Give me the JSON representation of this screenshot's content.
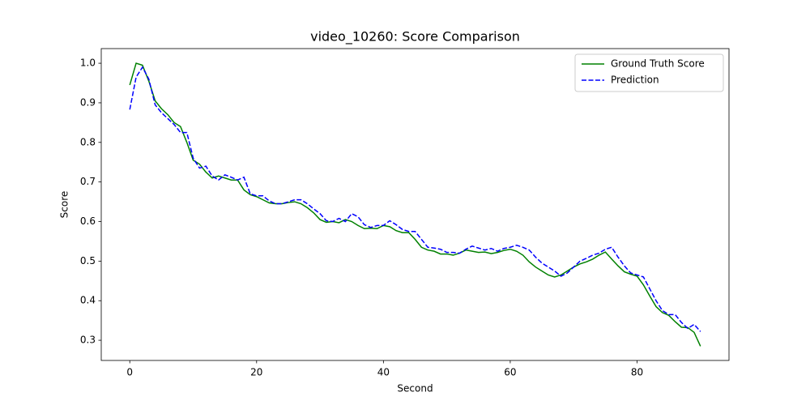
{
  "chart_data": {
    "type": "line",
    "title": "video_10260: Score Comparison",
    "x_label": "Second",
    "y_label": "Score",
    "x": [
      0,
      1,
      2,
      3,
      4,
      5,
      6,
      7,
      8,
      9,
      10,
      11,
      12,
      13,
      14,
      15,
      16,
      17,
      18,
      19,
      20,
      21,
      22,
      23,
      24,
      25,
      26,
      27,
      28,
      29,
      30,
      31,
      32,
      33,
      34,
      35,
      36,
      37,
      38,
      39,
      40,
      41,
      42,
      43,
      44,
      45,
      46,
      47,
      48,
      49,
      50,
      51,
      52,
      53,
      54,
      55,
      56,
      57,
      58,
      59,
      60,
      61,
      62,
      63,
      64,
      65,
      66,
      67,
      68,
      69,
      70,
      71,
      72,
      73,
      74,
      75,
      76,
      77,
      78,
      79,
      80,
      81,
      82,
      83,
      84,
      85,
      86,
      87,
      88,
      89,
      90
    ],
    "series": [
      {
        "name": "Ground Truth Score",
        "color": "#008000",
        "linestyle": "solid",
        "values": [
          0.945,
          1.0,
          0.995,
          0.955,
          0.905,
          0.885,
          0.87,
          0.85,
          0.84,
          0.8,
          0.755,
          0.745,
          0.725,
          0.71,
          0.715,
          0.71,
          0.705,
          0.705,
          0.68,
          0.668,
          0.663,
          0.655,
          0.647,
          0.645,
          0.645,
          0.648,
          0.65,
          0.645,
          0.635,
          0.622,
          0.605,
          0.598,
          0.6,
          0.597,
          0.605,
          0.6,
          0.59,
          0.582,
          0.583,
          0.582,
          0.59,
          0.587,
          0.577,
          0.572,
          0.572,
          0.555,
          0.535,
          0.528,
          0.525,
          0.518,
          0.518,
          0.515,
          0.52,
          0.528,
          0.525,
          0.522,
          0.523,
          0.519,
          0.522,
          0.527,
          0.53,
          0.525,
          0.515,
          0.498,
          0.485,
          0.475,
          0.465,
          0.46,
          0.465,
          0.475,
          0.485,
          0.493,
          0.498,
          0.505,
          0.515,
          0.523,
          0.505,
          0.488,
          0.473,
          0.467,
          0.462,
          0.44,
          0.412,
          0.385,
          0.37,
          0.363,
          0.347,
          0.333,
          0.332,
          0.32,
          0.285
        ]
      },
      {
        "name": "Prediction",
        "color": "#0000ff",
        "linestyle": "dashed",
        "values": [
          0.883,
          0.965,
          0.99,
          0.96,
          0.895,
          0.875,
          0.86,
          0.845,
          0.825,
          0.825,
          0.76,
          0.735,
          0.74,
          0.715,
          0.705,
          0.718,
          0.712,
          0.705,
          0.712,
          0.67,
          0.665,
          0.665,
          0.652,
          0.645,
          0.645,
          0.65,
          0.655,
          0.655,
          0.645,
          0.632,
          0.62,
          0.602,
          0.6,
          0.608,
          0.6,
          0.62,
          0.612,
          0.592,
          0.585,
          0.59,
          0.59,
          0.602,
          0.592,
          0.58,
          0.575,
          0.575,
          0.555,
          0.535,
          0.533,
          0.53,
          0.522,
          0.522,
          0.52,
          0.53,
          0.538,
          0.533,
          0.528,
          0.532,
          0.525,
          0.532,
          0.535,
          0.54,
          0.535,
          0.528,
          0.51,
          0.495,
          0.485,
          0.475,
          0.462,
          0.47,
          0.485,
          0.5,
          0.507,
          0.515,
          0.52,
          0.53,
          0.535,
          0.51,
          0.488,
          0.47,
          0.465,
          0.46,
          0.43,
          0.4,
          0.375,
          0.365,
          0.365,
          0.345,
          0.33,
          0.34,
          0.322
        ]
      }
    ],
    "xlim": [
      -4.5,
      94.5
    ],
    "ylim": [
      0.249,
      1.037
    ],
    "xticks": [
      0,
      20,
      40,
      60,
      80
    ],
    "yticks": [
      0.3,
      0.4,
      0.5,
      0.6,
      0.7,
      0.8,
      0.9,
      {
        "value": 1,
        "label": "1.0"
      }
    ],
    "legend": "upper right"
  }
}
